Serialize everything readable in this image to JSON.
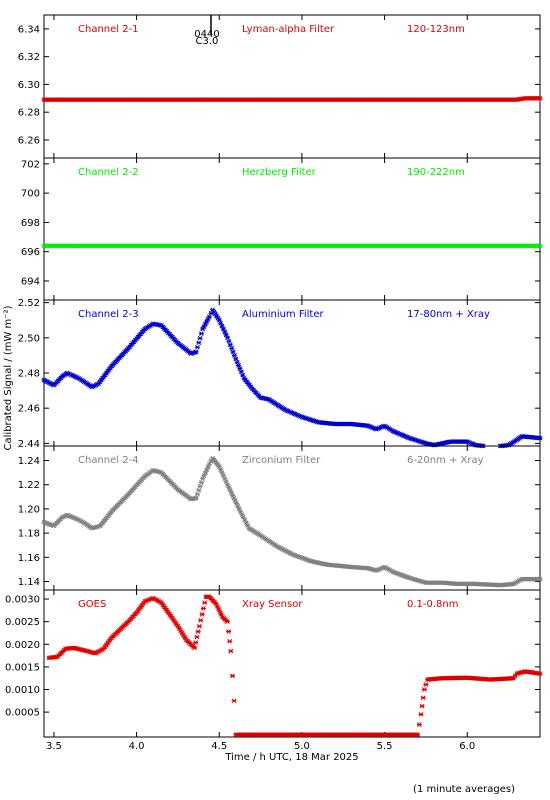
{
  "xlabel": "Time / h UTC, 18 Mar 2025",
  "ylabel": "Calibrated Signal / (mW m⁻²)",
  "footnote": "(1 minute averages)",
  "flare_marker": {
    "x": 4.45,
    "label_top": "0440",
    "label_bottom": "C3.0"
  },
  "x_axis": {
    "range": [
      3.44,
      6.44
    ],
    "ticks": [
      3.5,
      4.0,
      4.5,
      5.0,
      5.5,
      6.0
    ],
    "tick_labels": [
      "3.5",
      "4.0",
      "4.5",
      "5.0",
      "5.5",
      "6.0"
    ]
  },
  "chart_data": [
    {
      "type": "scatter",
      "panel": 1,
      "color": "#dd0000",
      "labels": [
        "Channel 2-1",
        "Lyman-alpha Filter",
        "120-123nm"
      ],
      "ylim": [
        6.247,
        6.35
      ],
      "yticks": [
        6.26,
        6.28,
        6.3,
        6.32,
        6.34
      ],
      "ytick_labels": [
        "6.26",
        "6.28",
        "6.30",
        "6.32",
        "6.34"
      ],
      "series": [
        {
          "points": [
            [
              3.44,
              6.289
            ],
            [
              6.3,
              6.289
            ],
            [
              6.35,
              6.29
            ],
            [
              6.44,
              6.29
            ]
          ]
        }
      ]
    },
    {
      "type": "scatter",
      "panel": 2,
      "color": "#00ee00",
      "labels": [
        "Channel 2-2",
        "Herzberg Filter",
        "190-222nm"
      ],
      "ylim": [
        692.7,
        702.4
      ],
      "yticks": [
        694,
        696,
        698,
        700,
        702
      ],
      "ytick_labels": [
        "694",
        "696",
        "698",
        "700",
        "702"
      ],
      "series": [
        {
          "points": [
            [
              3.44,
              696.4
            ],
            [
              6.44,
              696.4
            ]
          ]
        }
      ]
    },
    {
      "type": "scatter",
      "panel": 3,
      "color": "#0000cc",
      "labels": [
        "Channel 2-3",
        "Aluminium Filter",
        "17-80nm + Xray"
      ],
      "ylim": [
        2.4385,
        2.5215
      ],
      "yticks": [
        2.44,
        2.46,
        2.48,
        2.5,
        2.52
      ],
      "ytick_labels": [
        "2.44",
        "2.46",
        "2.48",
        "2.50",
        "2.52"
      ],
      "series": [
        {
          "points": [
            [
              3.44,
              2.476
            ],
            [
              3.5,
              2.473
            ],
            [
              3.55,
              2.478
            ],
            [
              3.58,
              2.48
            ],
            [
              3.65,
              2.477
            ],
            [
              3.7,
              2.474
            ],
            [
              3.73,
              2.472
            ],
            [
              3.77,
              2.474
            ],
            [
              3.85,
              2.484
            ],
            [
              3.95,
              2.494
            ],
            [
              4.05,
              2.505
            ],
            [
              4.1,
              2.508
            ],
            [
              4.15,
              2.507
            ],
            [
              4.25,
              2.497
            ],
            [
              4.33,
              2.491
            ],
            [
              4.36,
              2.492
            ],
            [
              4.4,
              2.505
            ],
            [
              4.44,
              2.512
            ],
            [
              4.46,
              2.516
            ],
            [
              4.5,
              2.51
            ],
            [
              4.55,
              2.5
            ],
            [
              4.6,
              2.488
            ],
            [
              4.65,
              2.477
            ],
            [
              4.7,
              2.471
            ],
            [
              4.75,
              2.466
            ],
            [
              4.8,
              2.465
            ],
            [
              4.9,
              2.459
            ],
            [
              5.0,
              2.455
            ],
            [
              5.1,
              2.452
            ],
            [
              5.2,
              2.451
            ],
            [
              5.3,
              2.451
            ],
            [
              5.4,
              2.45
            ],
            [
              5.45,
              2.448
            ],
            [
              5.5,
              2.45
            ],
            [
              5.55,
              2.447
            ],
            [
              5.65,
              2.443
            ],
            [
              5.75,
              2.44
            ],
            [
              5.8,
              2.439
            ],
            [
              5.9,
              2.441
            ],
            [
              6.0,
              2.441
            ],
            [
              6.05,
              2.439
            ],
            [
              6.15,
              2.438
            ],
            [
              6.25,
              2.439
            ],
            [
              6.3,
              2.442
            ],
            [
              6.33,
              2.444
            ],
            [
              6.44,
              2.443
            ]
          ]
        }
      ]
    },
    {
      "type": "scatter",
      "panel": 4,
      "color": "#808080",
      "labels": [
        "Channel 2-4",
        "Zirconium Filter",
        "6-20nm + Xray"
      ],
      "ylim": [
        1.133,
        1.252
      ],
      "yticks": [
        1.14,
        1.16,
        1.18,
        1.2,
        1.22,
        1.24
      ],
      "ytick_labels": [
        "1.14",
        "1.16",
        "1.18",
        "1.20",
        "1.22",
        "1.24"
      ],
      "series": [
        {
          "points": [
            [
              3.44,
              1.189
            ],
            [
              3.5,
              1.186
            ],
            [
              3.55,
              1.193
            ],
            [
              3.58,
              1.195
            ],
            [
              3.65,
              1.191
            ],
            [
              3.7,
              1.187
            ],
            [
              3.73,
              1.184
            ],
            [
              3.78,
              1.186
            ],
            [
              3.85,
              1.198
            ],
            [
              3.95,
              1.212
            ],
            [
              4.05,
              1.227
            ],
            [
              4.1,
              1.232
            ],
            [
              4.15,
              1.23
            ],
            [
              4.25,
              1.216
            ],
            [
              4.33,
              1.208
            ],
            [
              4.36,
              1.209
            ],
            [
              4.4,
              1.225
            ],
            [
              4.44,
              1.237
            ],
            [
              4.46,
              1.242
            ],
            [
              4.5,
              1.235
            ],
            [
              4.55,
              1.22
            ],
            [
              4.62,
              1.2
            ],
            [
              4.68,
              1.184
            ],
            [
              4.75,
              1.178
            ],
            [
              4.85,
              1.169
            ],
            [
              4.95,
              1.162
            ],
            [
              5.05,
              1.157
            ],
            [
              5.15,
              1.154
            ],
            [
              5.3,
              1.152
            ],
            [
              5.4,
              1.151
            ],
            [
              5.45,
              1.149
            ],
            [
              5.5,
              1.152
            ],
            [
              5.55,
              1.148
            ],
            [
              5.65,
              1.143
            ],
            [
              5.75,
              1.139
            ],
            [
              5.85,
              1.139
            ],
            [
              5.95,
              1.138
            ],
            [
              6.05,
              1.138
            ],
            [
              6.2,
              1.137
            ],
            [
              6.28,
              1.138
            ],
            [
              6.33,
              1.142
            ],
            [
              6.44,
              1.142
            ]
          ]
        }
      ]
    },
    {
      "type": "scatter",
      "panel": 5,
      "color": "#dd0000",
      "labels": [
        "GOES",
        "Xray Sensor",
        "0.1-0.8nm"
      ],
      "ylim": [
        -5e-05,
        0.0032
      ],
      "yticks": [
        0.0005,
        0.001,
        0.0015,
        0.002,
        0.0025,
        0.003
      ],
      "ytick_labels": [
        "0.0005",
        "0.0010",
        "0.0015",
        "0.0020",
        "0.0025",
        "0.0030"
      ],
      "series": [
        {
          "points": [
            [
              3.47,
              0.0017
            ],
            [
              3.52,
              0.00172
            ],
            [
              3.57,
              0.0019
            ],
            [
              3.62,
              0.00192
            ],
            [
              3.7,
              0.00185
            ],
            [
              3.75,
              0.0018
            ],
            [
              3.8,
              0.0019
            ],
            [
              3.85,
              0.00215
            ],
            [
              3.95,
              0.0025
            ],
            [
              4.0,
              0.0027
            ],
            [
              4.05,
              0.00295
            ],
            [
              4.1,
              0.00302
            ],
            [
              4.15,
              0.00292
            ],
            [
              4.25,
              0.0024
            ],
            [
              4.3,
              0.0021
            ],
            [
              4.35,
              0.00192
            ],
            [
              4.38,
              0.0024
            ],
            [
              4.42,
              0.00305
            ],
            [
              4.44,
              0.00305
            ],
            [
              4.48,
              0.0029
            ],
            [
              4.52,
              0.0026
            ],
            [
              4.55,
              0.0025
            ],
            [
              4.57,
              0.00185
            ],
            [
              4.59,
              0.00075
            ],
            [
              4.6,
              0.0
            ],
            [
              4.8,
              0.0
            ],
            [
              5.2,
              0.0
            ],
            [
              5.6,
              0.0
            ],
            [
              5.7,
              0.0
            ],
            [
              5.72,
              0.00045
            ],
            [
              5.74,
              0.001
            ],
            [
              5.76,
              0.00122
            ],
            [
              5.85,
              0.00125
            ],
            [
              6.0,
              0.00126
            ],
            [
              6.14,
              0.00122
            ],
            [
              6.28,
              0.00125
            ],
            [
              6.3,
              0.00135
            ],
            [
              6.35,
              0.0014
            ],
            [
              6.44,
              0.00135
            ]
          ]
        }
      ]
    }
  ]
}
